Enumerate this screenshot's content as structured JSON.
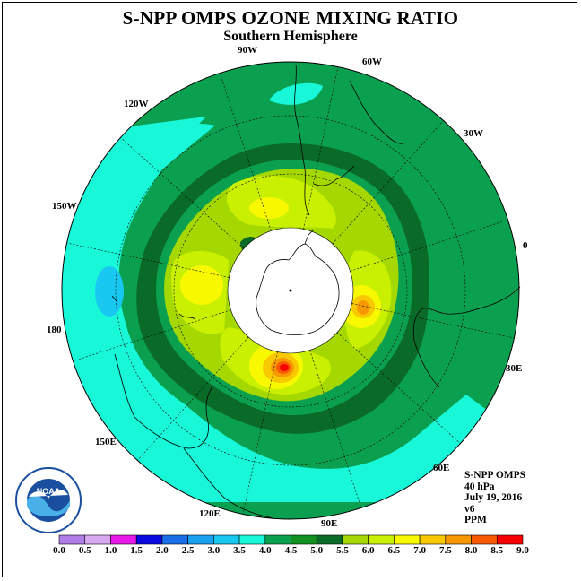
{
  "title": "S-NPP OMPS OZONE MIXING RATIO",
  "subtitle": "Southern Hemisphere",
  "longitude_labels": [
    "90W",
    "60W",
    "30W",
    "0",
    "30E",
    "60E",
    "90E",
    "120E",
    "150E",
    "180",
    "150W",
    "120W"
  ],
  "info": {
    "product": "S-NPP OMPS",
    "pressure": "40 hPa",
    "date": "July 19, 2016",
    "version": "v6",
    "units": "PPM"
  },
  "logo_text": "NOAA",
  "colorbar": {
    "labels": [
      "0.0",
      "0.5",
      "1.0",
      "1.5",
      "2.0",
      "2.5",
      "3.0",
      "3.5",
      "4.0",
      "4.5",
      "5.0",
      "5.5",
      "6.0",
      "6.5",
      "7.0",
      "7.5",
      "8.0",
      "8.5",
      "9.0"
    ],
    "colors": [
      "#b07ce8",
      "#d8a8f0",
      "#e818e8",
      "#0a0ae0",
      "#1a6ee8",
      "#1aa0f0",
      "#18c8f0",
      "#18f8d8",
      "#0ba050",
      "#129020",
      "#0a6a28",
      "#a4d800",
      "#c8f000",
      "#f8f800",
      "#f8c800",
      "#f89800",
      "#f85800",
      "#f80000",
      "#8a5a4a"
    ]
  },
  "map_colors": {
    "ocean_outer": "#18f8d8",
    "band_mid": "#0ba050",
    "band_dark": "#0a6a28",
    "lime": "#a4d800",
    "yellow": "#f8f800",
    "orange": "#f89800",
    "red": "#f80000",
    "blue": "#18c8f0",
    "polar_cap": "#ffffff"
  }
}
